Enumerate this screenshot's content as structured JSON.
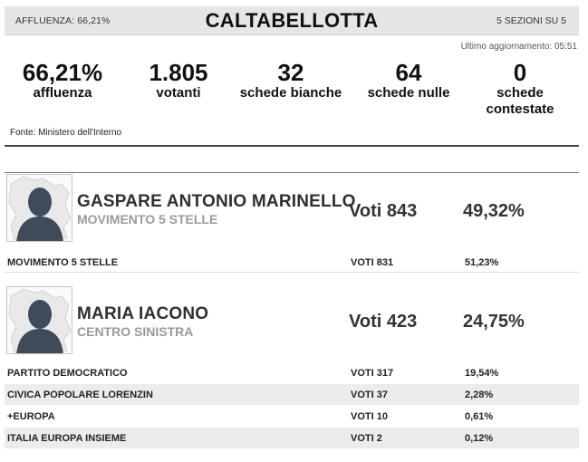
{
  "header": {
    "turnout_mini": "AFFLUENZA: 66,21%",
    "town": "CALTABELLOTTA",
    "sections": "5 SEZIONI SU 5"
  },
  "updated": "Ultimo aggiornamento: 05:51",
  "stats": [
    {
      "value": "66,21%",
      "label": "affluenza"
    },
    {
      "value": "1.805",
      "label": "votanti"
    },
    {
      "value": "32",
      "label": "schede bianche"
    },
    {
      "value": "64",
      "label": "schede nulle"
    },
    {
      "value": "0",
      "label": "schede contestate"
    }
  ],
  "source": "Fonte: Ministero dell'Interno",
  "candidates": [
    {
      "name": "GASPARE ANTONIO MARINELLO",
      "party": "MOVIMENTO 5 STELLE",
      "votes": "Voti 843",
      "pct": "49,32%",
      "lists": [
        {
          "name": "MOVIMENTO 5 STELLE",
          "votes": "VOTI 831",
          "pct": "51,23%"
        }
      ]
    },
    {
      "name": "MARIA IACONO",
      "party": "CENTRO SINISTRA",
      "votes": "Voti 423",
      "pct": "24,75%",
      "lists": [
        {
          "name": "PARTITO DEMOCRATICO",
          "votes": "VOTI 317",
          "pct": "19,54%"
        },
        {
          "name": "CIVICA POPOLARE LORENZIN",
          "votes": "VOTI 37",
          "pct": "2,28%"
        },
        {
          "name": "+EUROPA",
          "votes": "VOTI 10",
          "pct": "0,61%"
        },
        {
          "name": "ITALIA EUROPA INSIEME",
          "votes": "VOTI 2",
          "pct": "0,12%"
        }
      ]
    }
  ],
  "icons": {
    "photo": "candidate-avatar-placeholder-icon"
  }
}
